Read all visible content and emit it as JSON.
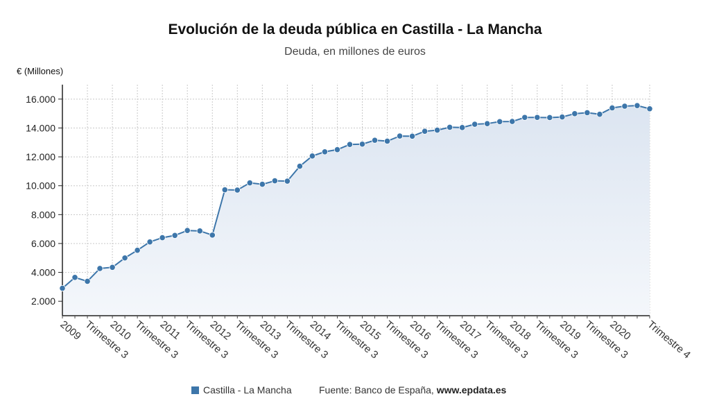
{
  "chart_data": {
    "type": "area",
    "title": "Evolución de la deuda pública en Castilla - La Mancha",
    "subtitle": "Deuda, en millones de euros",
    "ylabel": "€ (Millones)",
    "xlabel": "",
    "ylim": [
      1000,
      17000
    ],
    "yticks": [
      2000,
      4000,
      6000,
      8000,
      10000,
      12000,
      14000,
      16000
    ],
    "ytick_labels": [
      "2.000",
      "4.000",
      "6.000",
      "8.000",
      "10.000",
      "12.000",
      "14.000",
      "16.000"
    ],
    "grid": true,
    "colors": {
      "line": "#3d76aa",
      "fill_top": "#dce5f1",
      "fill_bottom": "#f4f7fb",
      "grid": "#c8c8c8"
    },
    "x_labels": [
      "2009",
      "Trimestre 3",
      "2010",
      "Trimestre 3",
      "2011",
      "Trimestre 3",
      "2012",
      "Trimestre 3",
      "2013",
      "Trimestre 3",
      "2014",
      "Trimestre 3",
      "2015",
      "Trimestre 3",
      "2016",
      "Trimestre 3",
      "2017",
      "Trimestre 3",
      "2018",
      "Trimestre 3",
      "2019",
      "Trimestre 3",
      "2020",
      "Trimestre 4"
    ],
    "x_label_quarter_index": [
      0,
      2,
      4,
      6,
      8,
      10,
      12,
      14,
      16,
      18,
      20,
      22,
      24,
      26,
      28,
      30,
      32,
      34,
      36,
      38,
      40,
      42,
      44,
      47
    ],
    "series": [
      {
        "name": "Castilla - La Mancha",
        "values": [
          2900,
          3650,
          3380,
          4270,
          4350,
          5000,
          5530,
          6110,
          6400,
          6560,
          6900,
          6870,
          6580,
          9720,
          9700,
          10200,
          10100,
          10340,
          10320,
          11350,
          12060,
          12350,
          12500,
          12860,
          12880,
          13150,
          13090,
          13440,
          13430,
          13770,
          13850,
          14050,
          14030,
          14260,
          14300,
          14440,
          14450,
          14730,
          14730,
          14720,
          14760,
          14990,
          15060,
          14950,
          15390,
          15510,
          15550,
          15330
        ]
      }
    ]
  },
  "legend": {
    "series_label": "Castilla - La Mancha",
    "source_label": "Fuente: Banco de España,",
    "source_site": "www.epdata.es"
  }
}
